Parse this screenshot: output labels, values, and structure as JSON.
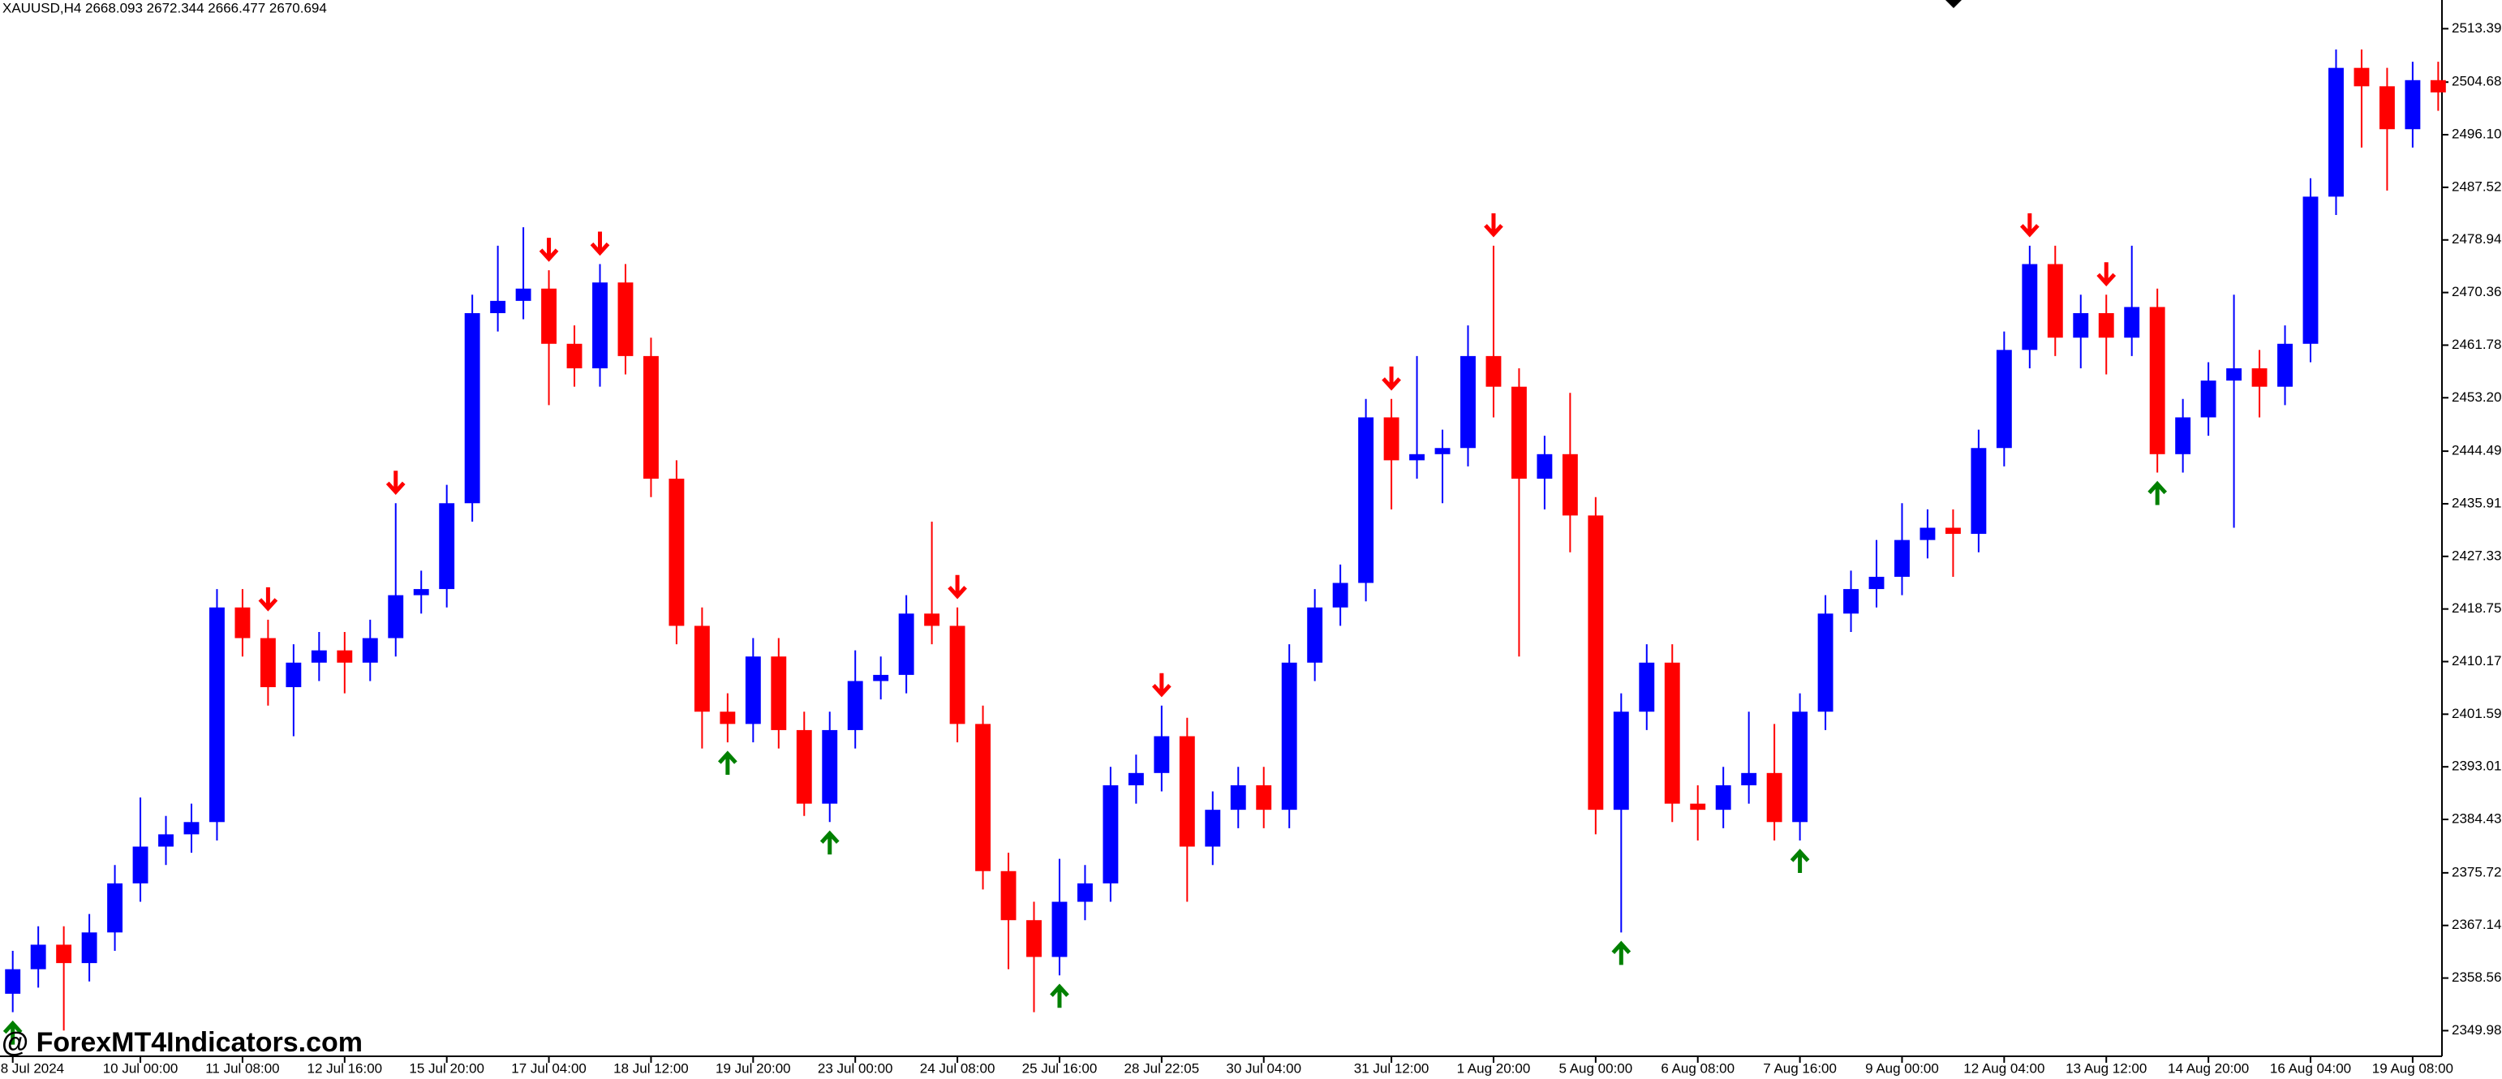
{
  "chart_data": {
    "type": "candlestick",
    "symbol_info": "XAUUSD,H4  2668.093 2672.344 2666.477 2670.694",
    "watermark": "@ ForexMT4Indicators.com",
    "bull_color": "#0000ff",
    "bear_color": "#ff0000",
    "buy_arrow_color": "#008000",
    "sell_arrow_color": "#ff0000",
    "categories": [
      "8 Jul 2024",
      null,
      null,
      null,
      null,
      "10 Jul 00:00",
      null,
      null,
      null,
      "11 Jul 08:00",
      null,
      null,
      null,
      "12 Jul 16:00",
      null,
      null,
      null,
      "15 Jul 20:00",
      null,
      null,
      null,
      "17 Jul 04:00",
      null,
      null,
      null,
      "18 Jul 12:00",
      null,
      null,
      null,
      "19 Jul 20:00",
      null,
      null,
      null,
      "23 Jul 00:00",
      null,
      null,
      null,
      "24 Jul 08:00",
      null,
      null,
      null,
      "25 Jul 16:00",
      null,
      null,
      null,
      "28 Jul 22:05",
      null,
      null,
      null,
      "30 Jul 04:00",
      null,
      null,
      null,
      null,
      "31 Jul 12:00",
      null,
      null,
      null,
      "1 Aug 20:00",
      null,
      null,
      null,
      "5 Aug 00:00",
      null,
      null,
      null,
      "6 Aug 08:00",
      null,
      null,
      null,
      "7 Aug 16:00",
      null,
      null,
      null,
      "9 Aug 00:00",
      null,
      null,
      null,
      "12 Aug 04:00",
      null,
      null,
      null,
      "13 Aug 12:00",
      null,
      null,
      null,
      "14 Aug 20:00",
      null,
      null,
      null,
      "16 Aug 04:00",
      null,
      null,
      null,
      "19 Aug 08:00",
      null
    ],
    "open": [
      2356,
      2360,
      2364,
      2361,
      2366,
      2374,
      2380,
      2382,
      2384,
      2419,
      2414,
      2406,
      2410,
      2412,
      2410,
      2414,
      2421,
      2422,
      2436,
      2467,
      2469,
      2471,
      2462,
      2458,
      2472,
      2460,
      2440,
      2416,
      2402,
      2400,
      2411,
      2399,
      2387,
      2399,
      2407,
      2408,
      2418,
      2416,
      2400,
      2376,
      2368,
      2362,
      2371,
      2374,
      2390,
      2392,
      2398,
      2380,
      2386,
      2390,
      2386,
      2410,
      2419,
      2423,
      2450,
      2443,
      2444,
      2445,
      2460,
      2455,
      2440,
      2444,
      2434,
      2386,
      2402,
      2410,
      2387,
      2386,
      2390,
      2392,
      2384,
      2402,
      2418,
      2422,
      2424,
      2430,
      2432,
      2431,
      2445,
      2461,
      2475,
      2463,
      2467,
      2463,
      2468,
      2444,
      2450,
      2456,
      2458,
      2455,
      2462,
      2486,
      2507,
      2504,
      2497,
      2505
    ],
    "high": [
      2363,
      2367,
      2367,
      2369,
      2377,
      2388,
      2385,
      2387,
      2422,
      2422,
      2417,
      2413,
      2415,
      2415,
      2417,
      2436,
      2425,
      2439,
      2470,
      2478,
      2481,
      2474,
      2465,
      2475,
      2475,
      2463,
      2443,
      2419,
      2405,
      2414,
      2414,
      2402,
      2402,
      2412,
      2411,
      2421,
      2433,
      2419,
      2403,
      2379,
      2371,
      2378,
      2377,
      2393,
      2395,
      2403,
      2401,
      2389,
      2393,
      2393,
      2413,
      2422,
      2426,
      2453,
      2453,
      2460,
      2448,
      2465,
      2478,
      2458,
      2447,
      2454,
      2437,
      2405,
      2413,
      2413,
      2390,
      2393,
      2402,
      2400,
      2405,
      2421,
      2425,
      2430,
      2436,
      2435,
      2435,
      2448,
      2464,
      2478,
      2478,
      2470,
      2470,
      2478,
      2471,
      2453,
      2459,
      2470,
      2461,
      2465,
      2489,
      2510,
      2510,
      2507,
      2508,
      2508
    ],
    "low": [
      2353,
      2357,
      2350,
      2358,
      2363,
      2371,
      2377,
      2379,
      2381,
      2411,
      2403,
      2398,
      2407,
      2405,
      2407,
      2411,
      2418,
      2419,
      2433,
      2464,
      2466,
      2452,
      2455,
      2455,
      2457,
      2437,
      2413,
      2396,
      2397,
      2397,
      2396,
      2385,
      2384,
      2396,
      2404,
      2405,
      2413,
      2397,
      2373,
      2360,
      2353,
      2359,
      2368,
      2371,
      2387,
      2389,
      2371,
      2377,
      2383,
      2383,
      2383,
      2407,
      2416,
      2420,
      2435,
      2440,
      2436,
      2442,
      2450,
      2411,
      2435,
      2428,
      2382,
      2366,
      2399,
      2384,
      2381,
      2383,
      2387,
      2381,
      2381,
      2399,
      2415,
      2419,
      2421,
      2427,
      2424,
      2428,
      2442,
      2458,
      2460,
      2458,
      2457,
      2460,
      2441,
      2441,
      2447,
      2432,
      2450,
      2452,
      2459,
      2483,
      2494,
      2487,
      2494,
      2500
    ],
    "close": [
      2360,
      2364,
      2361,
      2366,
      2374,
      2380,
      2382,
      2384,
      2419,
      2414,
      2406,
      2410,
      2412,
      2410,
      2414,
      2421,
      2422,
      2436,
      2467,
      2469,
      2471,
      2462,
      2458,
      2472,
      2460,
      2440,
      2416,
      2402,
      2400,
      2411,
      2399,
      2387,
      2399,
      2407,
      2408,
      2418,
      2416,
      2400,
      2376,
      2368,
      2362,
      2371,
      2374,
      2390,
      2392,
      2398,
      2380,
      2386,
      2390,
      2386,
      2410,
      2419,
      2423,
      2450,
      2443,
      2444,
      2445,
      2460,
      2455,
      2440,
      2444,
      2434,
      2386,
      2402,
      2410,
      2387,
      2386,
      2390,
      2392,
      2384,
      2402,
      2418,
      2422,
      2424,
      2430,
      2432,
      2431,
      2445,
      2461,
      2475,
      2463,
      2467,
      2463,
      2468,
      2444,
      2450,
      2456,
      2458,
      2455,
      2462,
      2486,
      2507,
      2504,
      2497,
      2505,
      2503
    ],
    "buy_arrows": [
      0,
      28,
      32,
      41,
      63,
      70,
      84
    ],
    "sell_arrows": [
      10,
      15,
      21,
      23,
      37,
      45,
      54,
      58,
      79,
      82
    ],
    "ylim": [
      2345.8,
      2518.07
    ],
    "yticks": [
      {
        "value": 2513.39,
        "label": "2513.390"
      },
      {
        "value": 2504.68,
        "label": "2504.680"
      },
      {
        "value": 2496.1,
        "label": "2496.100"
      },
      {
        "value": 2487.52,
        "label": "2487.520"
      },
      {
        "value": 2478.94,
        "label": "2478.940"
      },
      {
        "value": 2470.36,
        "label": "2470.360"
      },
      {
        "value": 2461.78,
        "label": "2461.780"
      },
      {
        "value": 2453.2,
        "label": "2453.200"
      },
      {
        "value": 2444.49,
        "label": "2444.490"
      },
      {
        "value": 2435.91,
        "label": "2435.910"
      },
      {
        "value": 2427.33,
        "label": "2427.330"
      },
      {
        "value": 2418.75,
        "label": "2418.750"
      },
      {
        "value": 2410.17,
        "label": "2410.170"
      },
      {
        "value": 2401.59,
        "label": "2401.590"
      },
      {
        "value": 2393.01,
        "label": "2393.010"
      },
      {
        "value": 2384.43,
        "label": "2384.430"
      },
      {
        "value": 2375.72,
        "label": "2375.720"
      },
      {
        "value": 2367.14,
        "label": "2367.140"
      },
      {
        "value": 2358.56,
        "label": "2358.560"
      },
      {
        "value": 2349.98,
        "label": "2349.980"
      }
    ],
    "grid": false
  }
}
